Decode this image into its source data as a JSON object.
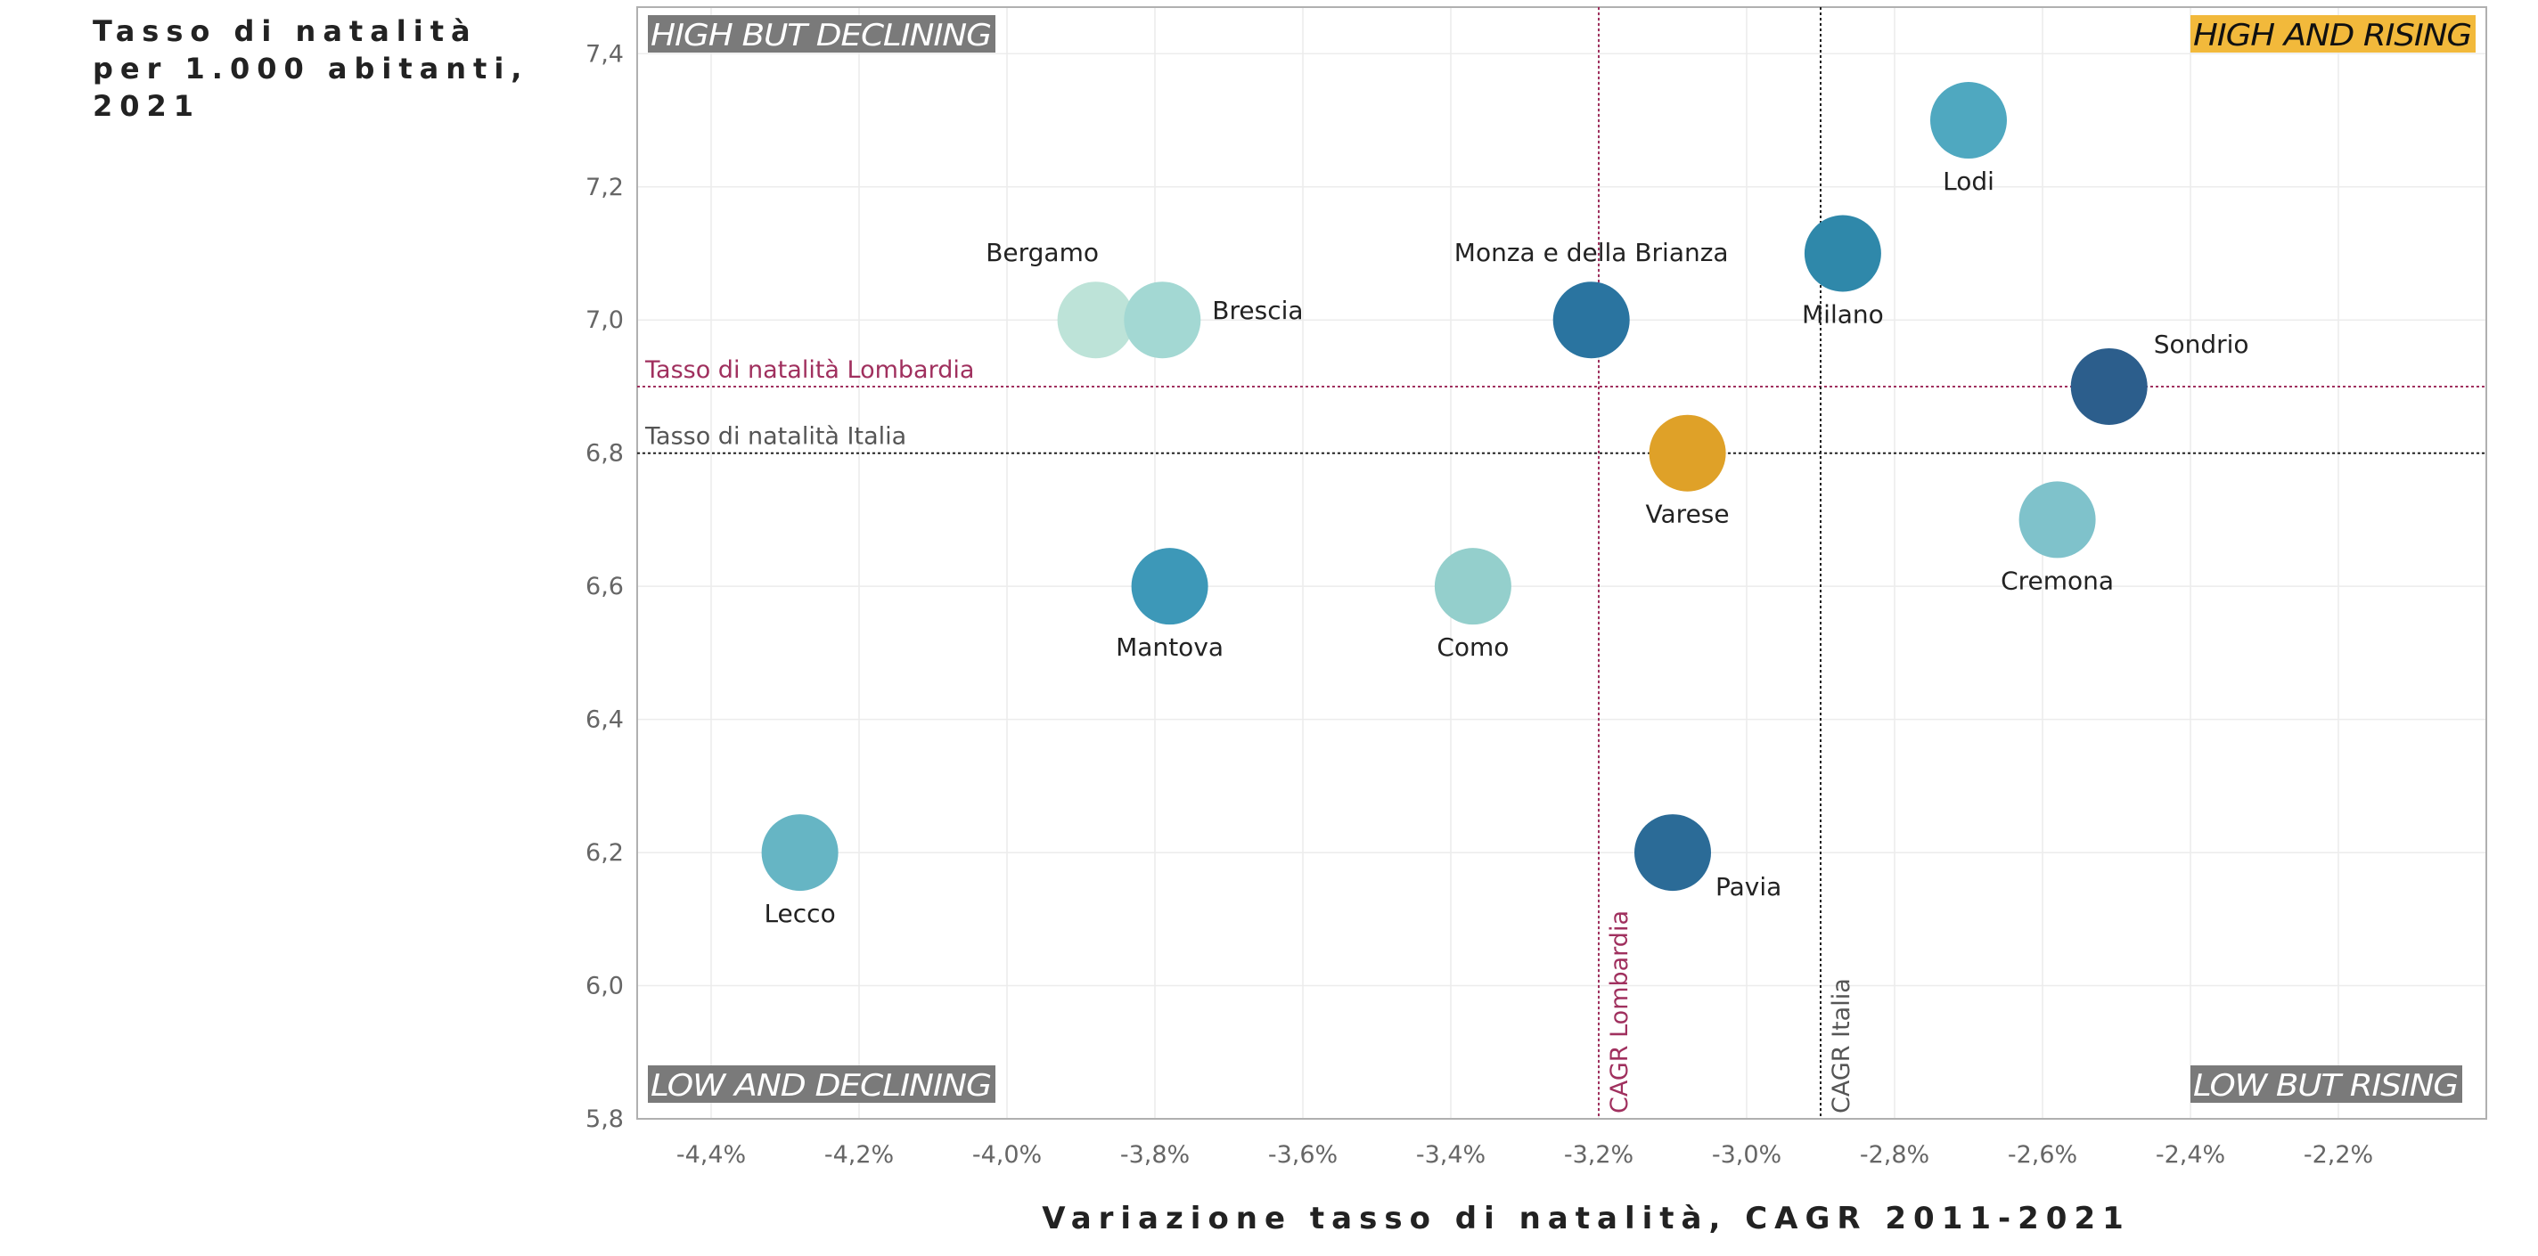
{
  "y_axis_title": "Tasso di natalità\nper 1.000 abitanti,\n2021",
  "x_axis_title": "Variazione tasso di natalità, CAGR 2011-2021",
  "quadrants": {
    "top_left": {
      "text": "HIGH BUT DECLINING",
      "bg": "#7a7a7a",
      "fg": "#ffffff"
    },
    "top_right": {
      "text": "HIGH AND RISING",
      "bg": "#f2b93b",
      "fg": "#111111"
    },
    "bottom_left": {
      "text": "LOW AND DECLINING",
      "bg": "#7a7a7a",
      "fg": "#ffffff"
    },
    "bottom_right": {
      "text": "LOW BUT RISING",
      "bg": "#7a7a7a",
      "fg": "#ffffff"
    }
  },
  "reference_lines": {
    "lombardia_rate": {
      "label": "Tasso di natalità Lombardia",
      "value": 6.9,
      "color": "#a0305e"
    },
    "italia_rate": {
      "label": "Tasso di natalità Italia",
      "value": 6.8,
      "color": "#555555"
    },
    "lombardia_cagr": {
      "label": "CAGR Lombardia",
      "value": -3.2,
      "color": "#a0305e"
    },
    "italia_cagr": {
      "label": "CAGR Italia",
      "value": -2.9,
      "color": "#555555"
    }
  },
  "chart_data": {
    "type": "scatter",
    "xlim": [
      -4.5,
      -2.0
    ],
    "ylim": [
      5.8,
      7.47
    ],
    "x_ticks": [
      -4.4,
      -4.2,
      -4.0,
      -3.8,
      -3.6,
      -3.4,
      -3.2,
      -3.0,
      -2.8,
      -2.6,
      -2.4,
      -2.2
    ],
    "x_tick_labels": [
      "-4,4%",
      "-4,2%",
      "-4,0%",
      "-3,8%",
      "-3,6%",
      "-3,4%",
      "-3,2%",
      "-3,0%",
      "-2,8%",
      "-2,6%",
      "-2,4%",
      "-2,2%"
    ],
    "y_ticks": [
      5.8,
      6.0,
      6.2,
      6.4,
      6.6,
      6.8,
      7.0,
      7.2,
      7.4
    ],
    "y_tick_labels": [
      "5,8",
      "6,0",
      "6,2",
      "6,4",
      "6,6",
      "6,8",
      "7,0",
      "7,2",
      "7,4"
    ],
    "grid": true,
    "points": [
      {
        "name": "Lodi",
        "x": -2.7,
        "y": 7.3,
        "color": "#4fa8c0",
        "label_pos": "below"
      },
      {
        "name": "Milano",
        "x": -2.87,
        "y": 7.1,
        "color": "#2f88aa",
        "label_pos": "below"
      },
      {
        "name": "Monza e della Brianza",
        "x": -3.21,
        "y": 7.0,
        "color": "#2a74a0",
        "label_pos": "above"
      },
      {
        "name": "Bergamo",
        "x": -3.88,
        "y": 7.0,
        "color": "#bde3d8",
        "label_pos": "above-left"
      },
      {
        "name": "Brescia",
        "x": -3.79,
        "y": 7.0,
        "color": "#a3d8d3",
        "label_pos": "right"
      },
      {
        "name": "Sondrio",
        "x": -2.51,
        "y": 6.9,
        "color": "#2c5e8c",
        "label_pos": "above-right"
      },
      {
        "name": "Varese",
        "x": -3.08,
        "y": 6.8,
        "color": "#dfa128",
        "label_pos": "below"
      },
      {
        "name": "Cremona",
        "x": -2.58,
        "y": 6.7,
        "color": "#7fc2cb",
        "label_pos": "below"
      },
      {
        "name": "Mantova",
        "x": -3.78,
        "y": 6.6,
        "color": "#3d98b8",
        "label_pos": "below"
      },
      {
        "name": "Como",
        "x": -3.37,
        "y": 6.6,
        "color": "#94cfcc",
        "label_pos": "below"
      },
      {
        "name": "Lecco",
        "x": -4.28,
        "y": 6.2,
        "color": "#66b5c4",
        "label_pos": "below"
      },
      {
        "name": "Pavia",
        "x": -3.1,
        "y": 6.2,
        "color": "#2b6b97",
        "label_pos": "right-below"
      }
    ]
  }
}
